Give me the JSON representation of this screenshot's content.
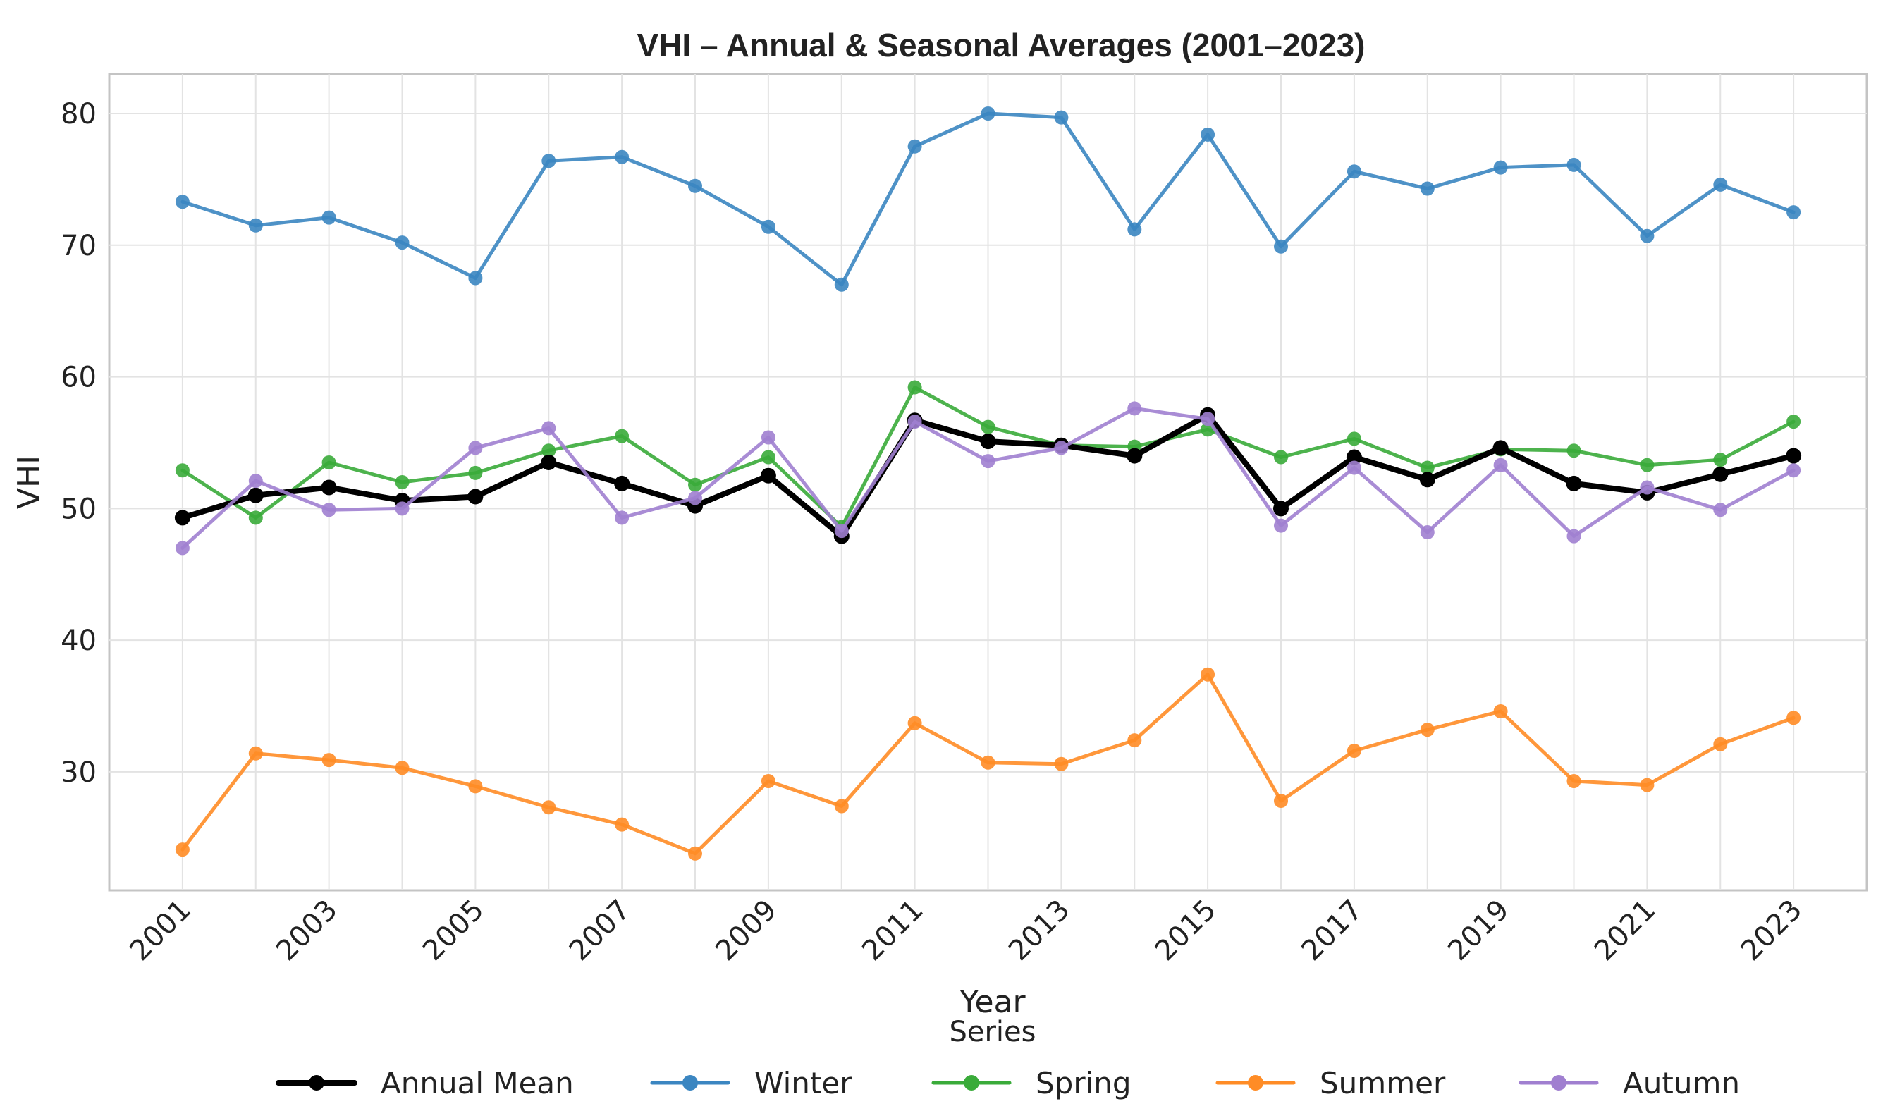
{
  "chart_data": {
    "type": "line",
    "title": "VHI – Annual & Seasonal Averages (2001–2023)",
    "xlabel": "Year",
    "ylabel": "VHI",
    "x": [
      2001,
      2002,
      2003,
      2004,
      2005,
      2006,
      2007,
      2008,
      2009,
      2010,
      2011,
      2012,
      2013,
      2014,
      2015,
      2016,
      2017,
      2018,
      2019,
      2020,
      2021,
      2022,
      2023
    ],
    "x_tick_labels": [
      "2001",
      "2003",
      "2005",
      "2007",
      "2009",
      "2011",
      "2013",
      "2015",
      "2017",
      "2019",
      "2021",
      "2023"
    ],
    "y_tick_labels": [
      "30",
      "40",
      "50",
      "60",
      "70",
      "80"
    ],
    "ylim": [
      21,
      83
    ],
    "grid": true,
    "legend_title": "Series",
    "legend_placement": "bottom-center",
    "series": [
      {
        "name": "Annual Mean",
        "color": "#000000",
        "values": [
          49.3,
          51.0,
          51.6,
          50.6,
          50.9,
          53.5,
          51.9,
          50.2,
          52.5,
          47.9,
          56.7,
          55.1,
          54.8,
          54.0,
          57.1,
          50.0,
          53.9,
          52.2,
          54.6,
          51.9,
          51.2,
          52.6,
          54.0
        ]
      },
      {
        "name": "Winter",
        "color": "#3b86c1",
        "values": [
          73.3,
          71.5,
          72.1,
          70.2,
          67.5,
          76.4,
          76.7,
          74.5,
          71.4,
          67.0,
          77.5,
          80.0,
          79.7,
          71.2,
          78.4,
          69.9,
          75.6,
          74.3,
          75.9,
          76.1,
          70.7,
          74.6,
          72.5
        ]
      },
      {
        "name": "Spring",
        "color": "#3aab3a",
        "values": [
          52.9,
          49.3,
          53.5,
          52.0,
          52.7,
          54.4,
          55.5,
          51.8,
          53.9,
          48.6,
          59.2,
          56.2,
          54.8,
          54.7,
          56.0,
          53.9,
          55.3,
          53.1,
          54.5,
          54.4,
          53.3,
          53.7,
          56.6
        ]
      },
      {
        "name": "Summer",
        "color": "#ff8c26",
        "values": [
          24.1,
          31.4,
          30.9,
          30.3,
          28.9,
          27.3,
          26.0,
          23.8,
          29.3,
          27.4,
          33.7,
          30.7,
          30.6,
          32.4,
          37.4,
          27.8,
          31.6,
          33.2,
          34.6,
          29.3,
          29.0,
          32.1,
          34.1
        ]
      },
      {
        "name": "Autumn",
        "color": "#a07fd0",
        "values": [
          47.0,
          52.1,
          49.9,
          50.0,
          54.6,
          56.1,
          49.3,
          50.8,
          55.4,
          48.3,
          56.6,
          53.6,
          54.6,
          57.6,
          56.8,
          48.7,
          53.1,
          48.2,
          53.3,
          47.9,
          51.6,
          49.9,
          52.9
        ]
      }
    ]
  }
}
